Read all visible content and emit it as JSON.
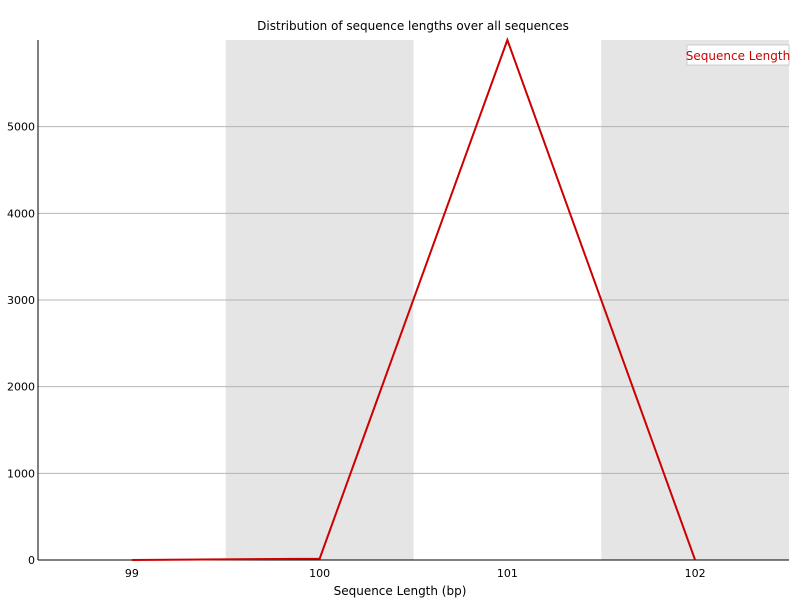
{
  "chart_data": {
    "type": "line",
    "title": "Distribution of sequence lengths over all sequences",
    "xlabel": "Sequence Length (bp)",
    "ylabel": "",
    "categories": [
      "99",
      "100",
      "101",
      "102"
    ],
    "x": [
      99,
      100,
      101,
      102
    ],
    "ylim": [
      0,
      6000
    ],
    "yticks": [
      0,
      1000,
      2000,
      3000,
      4000,
      5000
    ],
    "ytick_labels": [
      "0",
      "1000",
      "2000",
      "3000",
      "4000",
      "5000"
    ],
    "series": [
      {
        "name": "Sequence Length",
        "values": [
          0,
          15,
          6000,
          0
        ],
        "color": "#cc0000"
      }
    ],
    "grid": true,
    "legend_position": "top-right",
    "band_colors": [
      "#ffffff",
      "#e5e5e5"
    ]
  }
}
